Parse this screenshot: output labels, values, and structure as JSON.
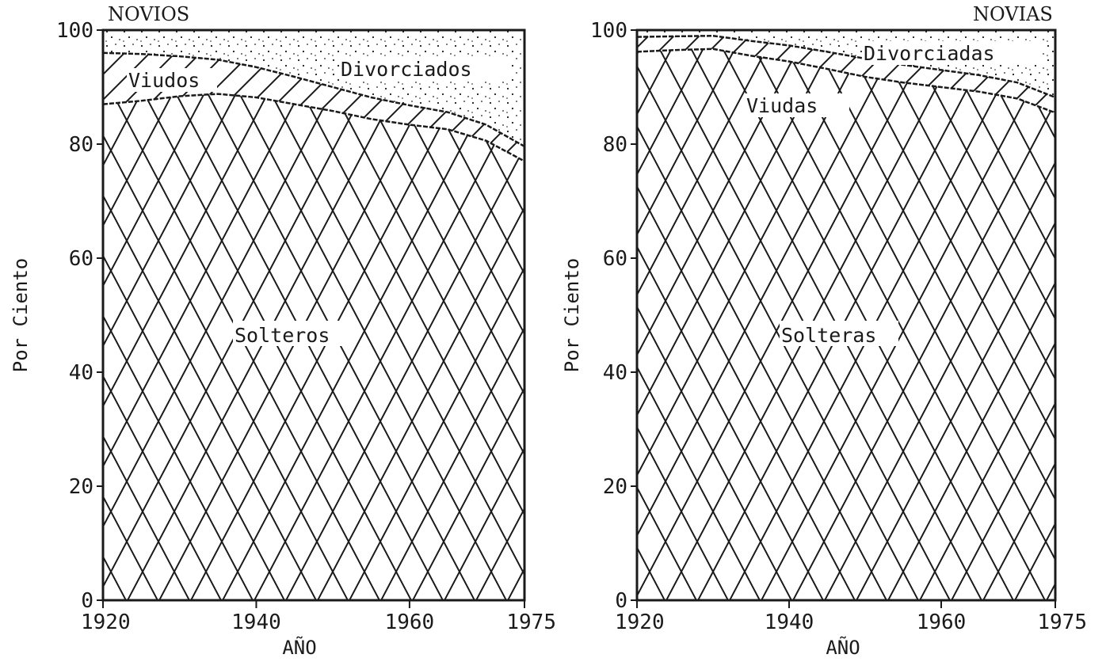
{
  "chart_data": [
    {
      "type": "area",
      "title": "NOVIOS",
      "xlabel": "AÑO",
      "ylabel": "Por Ciento",
      "xlim": [
        1920,
        1975
      ],
      "ylim": [
        0,
        100
      ],
      "x_ticks": [
        "1920",
        "1940",
        "1960",
        "1975"
      ],
      "y_ticks": [
        "0",
        "20",
        "40",
        "60",
        "80",
        "100"
      ],
      "x": [
        1920,
        1925,
        1930,
        1935,
        1940,
        1945,
        1950,
        1955,
        1960,
        1965,
        1970,
        1975
      ],
      "series": [
        {
          "name": "Solteros",
          "pattern": "crosshatch",
          "values": [
            87,
            87.6,
            88.4,
            88.8,
            88.2,
            87,
            85.8,
            84.4,
            83.4,
            82.6,
            80.6,
            77
          ]
        },
        {
          "name": "Viudos",
          "pattern": "hatch",
          "values": [
            9,
            8.2,
            7,
            6,
            5.3,
            4.8,
            4.2,
            3.8,
            3.4,
            3,
            2.8,
            2.6
          ]
        },
        {
          "name": "Divorciados",
          "pattern": "dots",
          "values": [
            4,
            4.2,
            4.6,
            5.2,
            6.5,
            8.2,
            10,
            11.8,
            13.2,
            14.4,
            16.6,
            20.4
          ]
        }
      ],
      "labels": {
        "solteros": "Solteros",
        "viudos": "Viudos",
        "divorciados": "Divorciados"
      }
    },
    {
      "type": "area",
      "title": "NOVIAS",
      "xlabel": "AÑO",
      "ylabel": "Por Ciento",
      "xlim": [
        1920,
        1975
      ],
      "ylim": [
        0,
        100
      ],
      "x_ticks": [
        "1920",
        "1940",
        "1960",
        "1975"
      ],
      "y_ticks": [
        "0",
        "20",
        "40",
        "60",
        "80",
        "100"
      ],
      "x": [
        1920,
        1925,
        1930,
        1935,
        1940,
        1945,
        1950,
        1955,
        1960,
        1965,
        1970,
        1975
      ],
      "series": [
        {
          "name": "Solteras",
          "pattern": "crosshatch",
          "values": [
            96.2,
            96.5,
            96.7,
            95.5,
            94.5,
            93.2,
            91.8,
            90.8,
            90,
            89.2,
            88,
            85.5
          ]
        },
        {
          "name": "Viudas",
          "pattern": "hatch",
          "values": [
            2.6,
            2.4,
            2.3,
            2.6,
            2.8,
            3,
            3.2,
            3.1,
            3,
            2.9,
            2.8,
            2.7
          ]
        },
        {
          "name": "Divorciadas",
          "pattern": "dots",
          "values": [
            1.2,
            1.1,
            1,
            1.9,
            2.7,
            3.8,
            5,
            6.1,
            7,
            7.9,
            9.2,
            11.8
          ]
        }
      ],
      "labels": {
        "solteros": "Solteras",
        "viudos": "Viudas",
        "divorciados": "Divorciadas"
      }
    }
  ]
}
